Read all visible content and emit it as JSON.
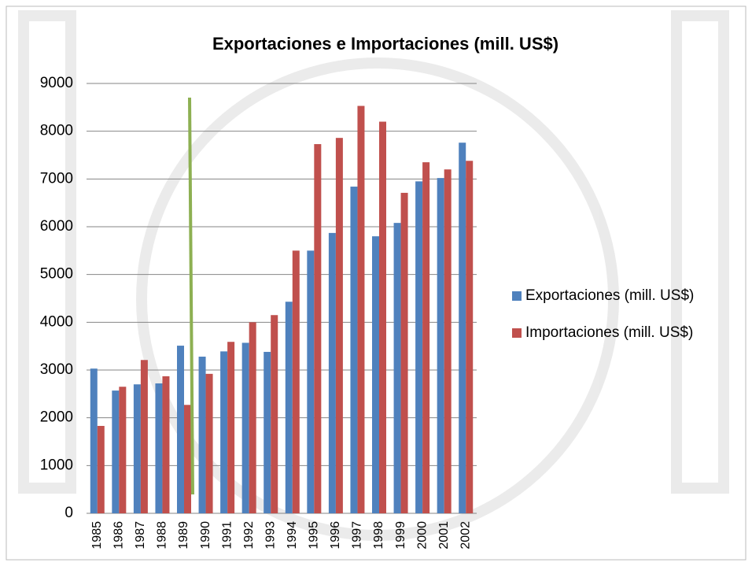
{
  "chart_data": {
    "type": "bar",
    "title": "Exportaciones e Importaciones (mill. US$)",
    "categories": [
      "1985",
      "1986",
      "1987",
      "1988",
      "1989",
      "1990",
      "1991",
      "1992",
      "1993",
      "1994",
      "1995",
      "1996",
      "1997",
      "1998",
      "1999",
      "2000",
      "2001",
      "2002"
    ],
    "series": [
      {
        "name": "Exportaciones (mill. US$)",
        "color": "#4f81bd",
        "values": [
          3030,
          2570,
          2700,
          2720,
          3510,
          3280,
          3390,
          3570,
          3380,
          4430,
          5500,
          5870,
          6840,
          5800,
          6080,
          6950,
          7020,
          7760
        ]
      },
      {
        "name": "Importaciones (mill. US$)",
        "color": "#c0504d",
        "values": [
          1830,
          2650,
          3210,
          2870,
          2270,
          2920,
          3590,
          4000,
          4150,
          5500,
          7730,
          7860,
          8530,
          8200,
          6710,
          7350,
          7200,
          7380
        ]
      }
    ],
    "ylim": [
      0,
      9000
    ],
    "yticks": [
      0,
      1000,
      2000,
      3000,
      4000,
      5000,
      6000,
      7000,
      8000,
      9000
    ],
    "grid": true,
    "legend": "right"
  }
}
